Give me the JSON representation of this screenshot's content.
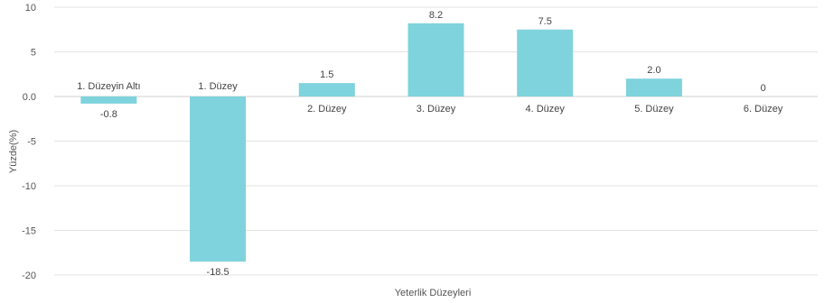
{
  "chart_data": {
    "type": "bar",
    "categories": [
      "1. Düzeyin Altı",
      "1. Düzey",
      "2. Düzey",
      "3. Düzey",
      "4. Düzey",
      "5. Düzey",
      "6. Düzey"
    ],
    "values": [
      -0.8,
      -18.5,
      1.5,
      8.2,
      7.5,
      2.0,
      0
    ],
    "value_labels": [
      "-0.8",
      "-18.5",
      "1.5",
      "8.2",
      "7.5",
      "2.0",
      "0"
    ],
    "title": "",
    "xlabel": "Yeterlik Düzeyleri",
    "ylabel": "Yüzde(%)",
    "ylim": [
      -20,
      10
    ],
    "yticks": [
      10,
      5,
      0.0,
      -5,
      -10,
      -15,
      -20
    ],
    "ytick_labels": [
      "10",
      "5",
      "0.0",
      "-5",
      "-10",
      "-15",
      "-20"
    ],
    "grid": true,
    "bar_color": "#7fd3dc"
  }
}
